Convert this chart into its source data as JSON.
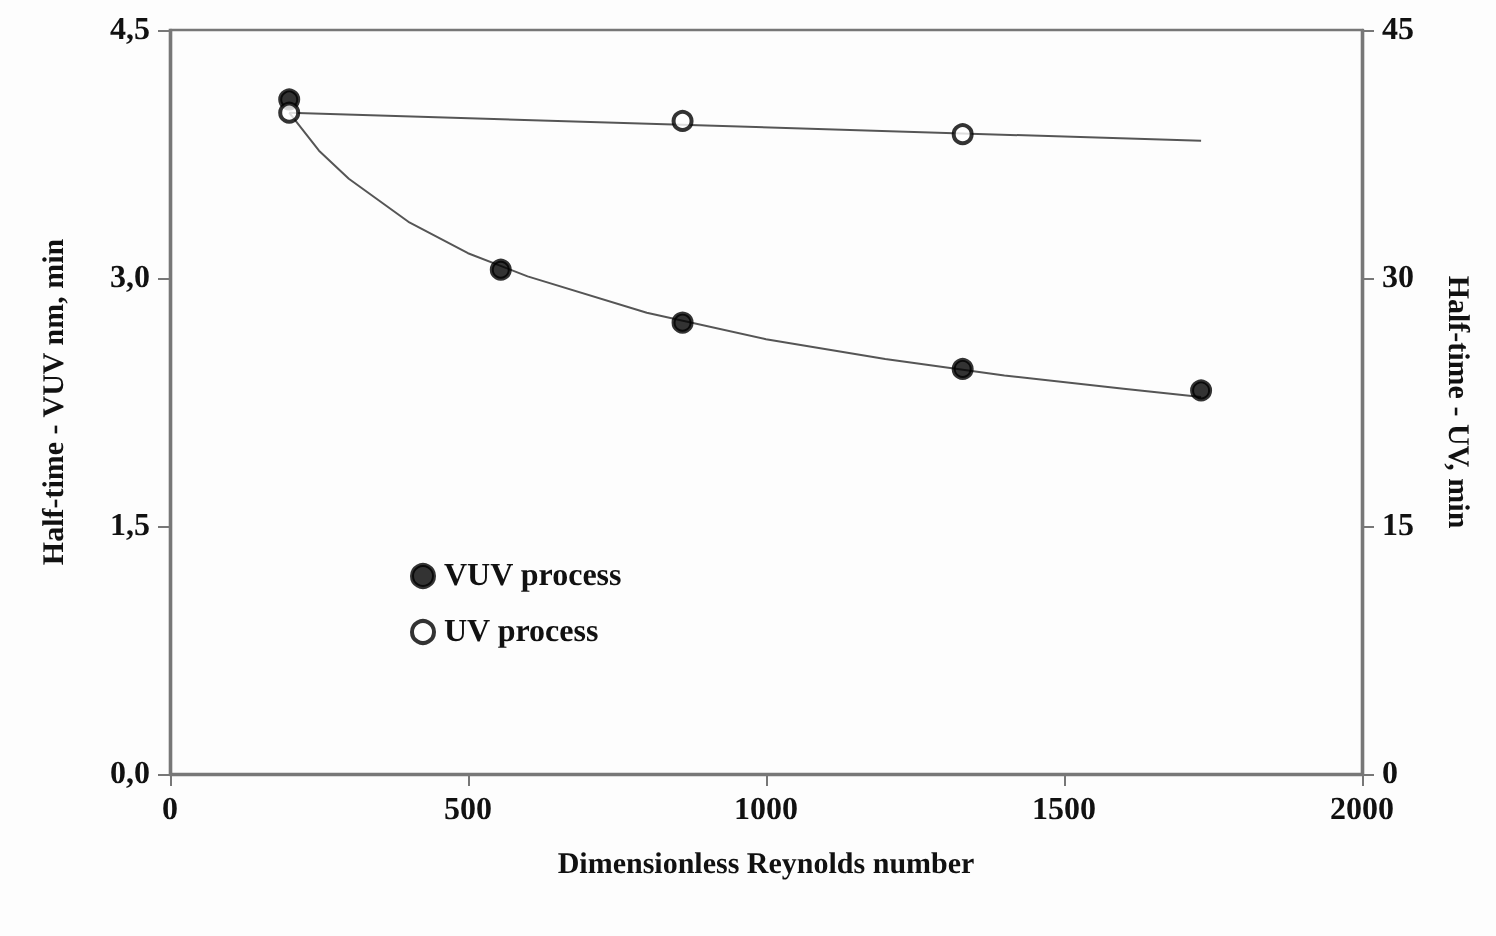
{
  "chart_data": {
    "type": "scatter",
    "xlabel": "Dimensionless Reynolds number",
    "ylabel": "Half-time - VUV nm, min",
    "y2label": "Half-time - UV, min",
    "xlim": [
      0,
      2000
    ],
    "xticks": [
      0,
      500,
      1000,
      1500,
      2000
    ],
    "ylim": [
      0,
      4.5
    ],
    "yticks": [
      {
        "value": 0,
        "label": "0,0"
      },
      {
        "value": 1.5,
        "label": "1,5"
      },
      {
        "value": 3,
        "label": "3,0"
      },
      {
        "value": 4.5,
        "label": "4,5"
      }
    ],
    "y2lim": [
      0,
      45
    ],
    "y2ticks": [
      0,
      15,
      30,
      45
    ],
    "grid": false,
    "legend": "bottom left",
    "series": [
      {
        "name": "VUV process",
        "marker": "circle",
        "color": "#000000",
        "x": [
          200,
          555,
          860,
          1330,
          1730
        ],
        "values": [
          4.08,
          3.05,
          2.73,
          2.45,
          2.32
        ]
      },
      {
        "name": "UV process",
        "marker": "circle",
        "color": "#ffffff",
        "axis": "y2",
        "x": [
          200,
          860,
          1330
        ],
        "values": [
          40.0,
          39.5,
          38.7
        ]
      },
      {
        "type": "line",
        "marker": "none",
        "color": "#555555",
        "x": [
          200,
          250,
          300,
          400,
          500,
          600,
          800,
          1000,
          1200,
          1400,
          1600,
          1730
        ],
        "values": [
          4.0,
          3.77,
          3.6,
          3.34,
          3.15,
          3.01,
          2.79,
          2.63,
          2.51,
          2.41,
          2.33,
          2.28
        ]
      },
      {
        "type": "line",
        "marker": "none",
        "color": "#555555",
        "axis": "y2",
        "x": [
          200,
          1730
        ],
        "values": [
          40.0,
          38.3
        ]
      }
    ]
  }
}
